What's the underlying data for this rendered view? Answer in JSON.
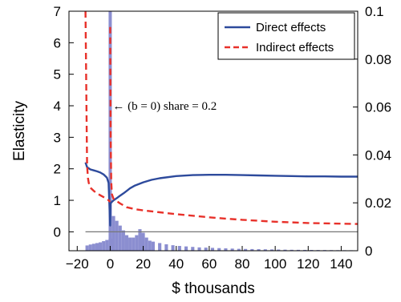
{
  "chart_data": {
    "type": "line",
    "xlabel": "$ thousands",
    "ylabel": "Elasticity",
    "xlim": [
      -25,
      150
    ],
    "ylim_left": [
      -0.6,
      7
    ],
    "ylim_right": [
      0,
      0.1
    ],
    "x_ticks": [
      -20,
      0,
      20,
      40,
      60,
      80,
      100,
      120,
      140
    ],
    "x_tick_labels": [
      "−20",
      "0",
      "20",
      "40",
      "60",
      "80",
      "100",
      "120",
      "140"
    ],
    "y_left_ticks": [
      0,
      1,
      2,
      3,
      4,
      5,
      6,
      7
    ],
    "y_left_tick_labels": [
      "0",
      "1",
      "2",
      "3",
      "4",
      "5",
      "6",
      "7"
    ],
    "y_right_ticks": [
      0,
      0.02,
      0.04,
      0.06,
      0.08,
      0.1
    ],
    "y_right_tick_labels": [
      "0",
      "0.02",
      "0.04",
      "0.06",
      "0.08",
      "0.1"
    ],
    "legend": {
      "position": "top-right",
      "entries": [
        "Direct effects",
        "Indirect effects"
      ]
    },
    "annotation": "← (b = 0) share = 0.2",
    "reference_line_y": 0,
    "colors": {
      "direct": "#2d4a9c",
      "indirect": "#e8312a",
      "histogram": "#8b8ed0",
      "zero_line": "#777777"
    },
    "series": [
      {
        "name": "Direct effects",
        "style": "solid",
        "x": [
          -15,
          -14,
          -12,
          -10,
          -8,
          -6,
          -4,
          -2,
          -1,
          0,
          0.2,
          1,
          2,
          4,
          6,
          8,
          10,
          12,
          15,
          20,
          25,
          30,
          40,
          50,
          60,
          70,
          80,
          90,
          100,
          110,
          120,
          130,
          140,
          150
        ],
        "y": [
          2.2,
          2.05,
          1.98,
          1.95,
          1.92,
          1.88,
          1.82,
          1.72,
          1.55,
          0.2,
          0.9,
          0.95,
          1.0,
          1.07,
          1.15,
          1.22,
          1.3,
          1.38,
          1.47,
          1.57,
          1.65,
          1.7,
          1.77,
          1.8,
          1.81,
          1.81,
          1.8,
          1.79,
          1.78,
          1.77,
          1.76,
          1.76,
          1.75,
          1.75
        ]
      },
      {
        "name": "Indirect effects",
        "style": "dashed",
        "segments": [
          {
            "x": [
              -15,
              -14.8,
              -14.5,
              -14.2,
              -14,
              -13.5,
              -13,
              -12,
              -10,
              -8,
              -6,
              -4,
              -2,
              -1,
              0
            ],
            "y": [
              7,
              6.0,
              4.5,
              3.0,
              2.1,
              1.7,
              1.55,
              1.4,
              1.3,
              1.22,
              1.16,
              1.1,
              1.05,
              1.0,
              0.95
            ]
          },
          {
            "x": [
              0,
              0.3,
              0.6,
              1,
              2,
              4,
              6,
              8,
              10,
              15,
              20,
              30,
              40,
              50,
              60,
              70,
              80,
              90,
              100,
              110,
              120,
              130,
              140,
              150
            ],
            "y": [
              6.5,
              3.0,
              1.6,
              1.2,
              1.05,
              0.97,
              0.9,
              0.84,
              0.78,
              0.72,
              0.68,
              0.62,
              0.56,
              0.51,
              0.46,
              0.42,
              0.38,
              0.35,
              0.32,
              0.3,
              0.28,
              0.27,
              0.26,
              0.25
            ]
          }
        ]
      }
    ],
    "histogram": {
      "axis": "right",
      "bin_width": 2,
      "bins_start": [
        -15,
        -13,
        -11,
        -9,
        -7,
        -5,
        -3,
        -1,
        1,
        3,
        5,
        7,
        9,
        11,
        13,
        15,
        17,
        19,
        21,
        23,
        25,
        29,
        33,
        37,
        41,
        45,
        49,
        53,
        57,
        61,
        65,
        69,
        73,
        77,
        81,
        85,
        89,
        93,
        97,
        101,
        105,
        109,
        113,
        117,
        121,
        125,
        129,
        133,
        137,
        141,
        145
      ],
      "heights": [
        0.0022,
        0.0026,
        0.0029,
        0.0032,
        0.0035,
        0.004,
        0.0045,
        0.005,
        0.0145,
        0.0125,
        0.0105,
        0.0085,
        0.0065,
        0.0055,
        0.0055,
        0.0065,
        0.009,
        0.0075,
        0.0055,
        0.0042,
        0.0038,
        0.0032,
        0.0027,
        0.0023,
        0.002,
        0.0018,
        0.0016,
        0.0014,
        0.0013,
        0.0012,
        0.0011,
        0.001,
        0.0009,
        0.0008,
        0.00075,
        0.0007,
        0.00065,
        0.0006,
        0.00055,
        0.0005,
        0.00045,
        0.0004,
        0.00038,
        0.00035,
        0.00033,
        0.0003,
        0.00028,
        0.00026,
        0.00024,
        0.00022,
        0.0002
      ],
      "spike": {
        "x": 0,
        "value": 0.2
      }
    }
  }
}
